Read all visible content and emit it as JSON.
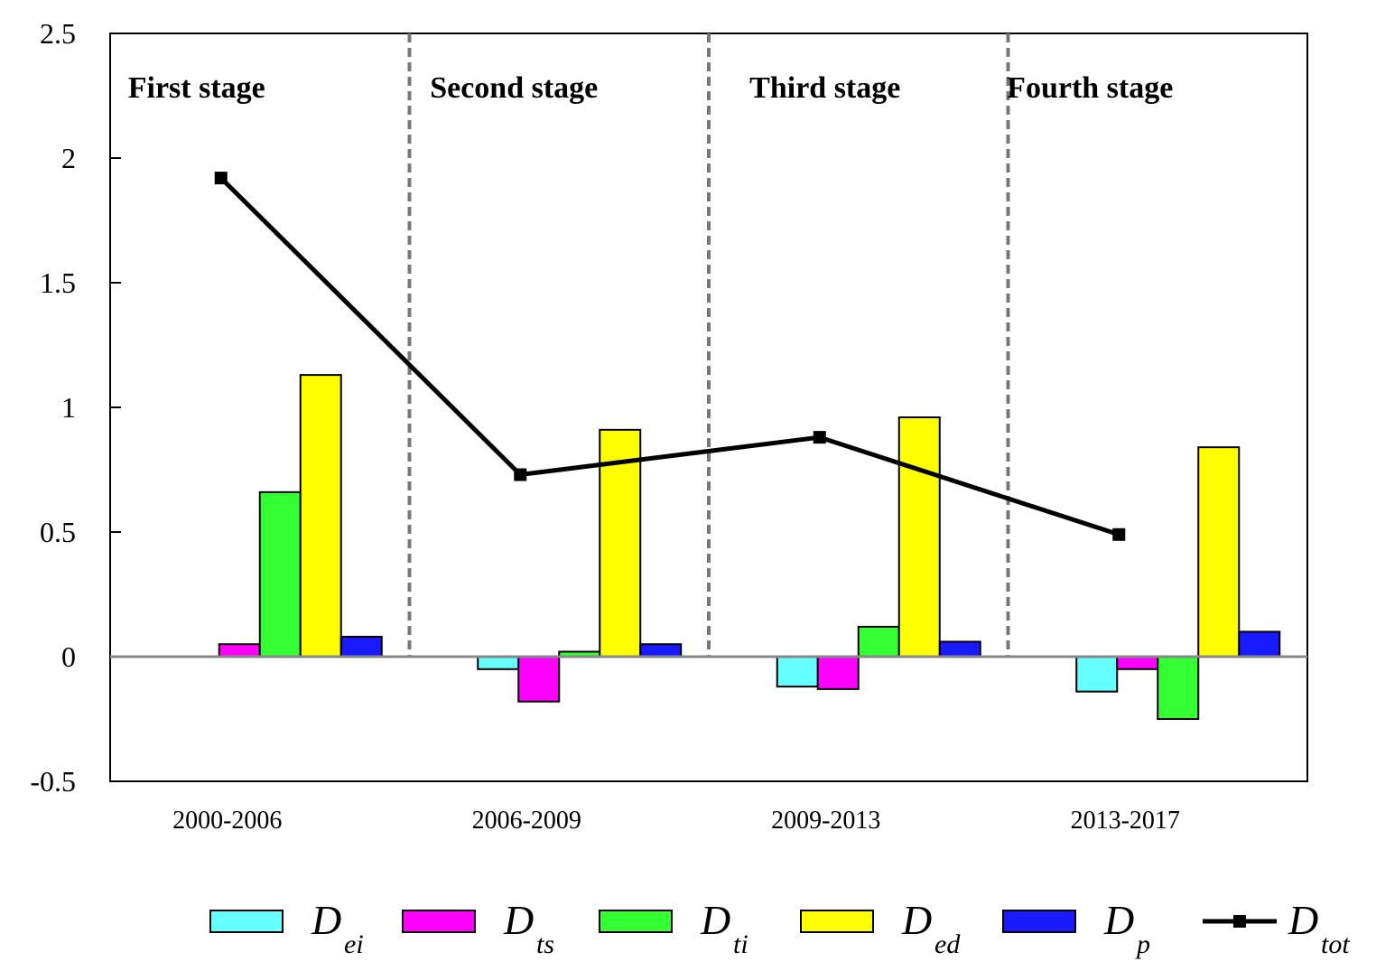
{
  "chart_data": {
    "type": "bar",
    "title": "",
    "xlabel": "",
    "ylabel": "",
    "ylim": [
      -0.5,
      2.5
    ],
    "yticks": [
      "-0.5",
      "0",
      "0.5",
      "1",
      "1.5",
      "2",
      "2.5"
    ],
    "ytick_values": [
      -0.5,
      0,
      0.5,
      1,
      1.5,
      2,
      2.5
    ],
    "categories": [
      "2000-2006",
      "2006-2009",
      "2009-2013",
      "2013-2017"
    ],
    "stages": [
      "First stage",
      "Second stage",
      "Third stage",
      "Fourth stage"
    ],
    "series": [
      {
        "name": "D",
        "sub": "ei",
        "color": "#66ffff",
        "values": [
          0.0,
          -0.05,
          -0.12,
          -0.14
        ]
      },
      {
        "name": "D",
        "sub": "ts",
        "color": "#ff00ff",
        "values": [
          0.05,
          -0.18,
          -0.13,
          -0.05
        ]
      },
      {
        "name": "D",
        "sub": "ti",
        "color": "#33ff33",
        "values": [
          0.66,
          0.02,
          0.12,
          -0.25
        ]
      },
      {
        "name": "D",
        "sub": "ed",
        "color": "#ffff00",
        "values": [
          1.13,
          0.91,
          0.96,
          0.84
        ]
      },
      {
        "name": "D",
        "sub": "p",
        "color": "#1a1aff",
        "values": [
          0.08,
          0.05,
          0.06,
          0.1
        ]
      }
    ],
    "line_series": {
      "name": "D",
      "sub": "tot",
      "color": "#000000",
      "values": [
        1.92,
        0.73,
        0.88,
        0.49
      ]
    },
    "stage_dividers": "dashed gray lines between periods",
    "legend_position": "bottom",
    "grid": false
  }
}
